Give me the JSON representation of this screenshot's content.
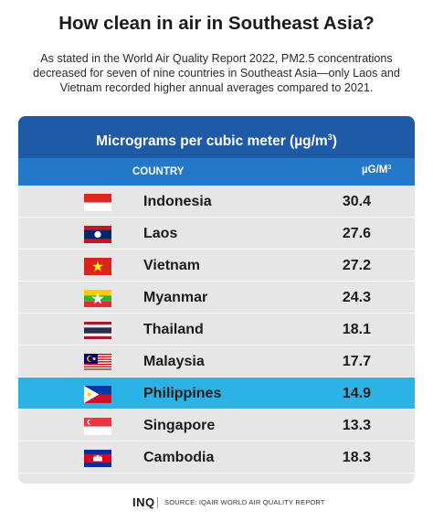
{
  "title": "How clean in air in Southeast Asia?",
  "subtitle": "As stated in the World Air Quality Report 2022, PM2.5 concentrations decreased for seven of nine countries in Southeast Asia—only Laos and Vietnam recorded higher annual averages compared to 2021.",
  "table": {
    "header": "Micrograms per cubic meter (µg/m",
    "header_sup": "3",
    "header_close": ")",
    "col_country": "COUNTRY",
    "col_value": "µG/M",
    "col_value_sup": "3"
  },
  "chart_data": {
    "type": "table",
    "columns": [
      "COUNTRY",
      "µG/M3"
    ],
    "categories": [
      "Indonesia",
      "Laos",
      "Vietnam",
      "Myanmar",
      "Thailand",
      "Malaysia",
      "Philippines",
      "Singapore",
      "Cambodia"
    ],
    "values": [
      "30.4",
      "27.6",
      "27.2",
      "24.3",
      "18.1",
      "17.7",
      "14.9",
      "13.3",
      "18.3"
    ],
    "highlighted": "Philippines",
    "flags": [
      "indonesia-flag-icon",
      "laos-flag-icon",
      "vietnam-flag-icon",
      "myanmar-flag-icon",
      "thailand-flag-icon",
      "malaysia-flag-icon",
      "philippines-flag-icon",
      "singapore-flag-icon",
      "cambodia-flag-icon"
    ]
  },
  "colors": {
    "header_bg": "#1f5aa6",
    "colhead_bg": "#2478c9",
    "row_bg": "#e6e6e6",
    "highlight_bg": "#2bb3e6"
  },
  "footer": {
    "logo": "INQ",
    "source": "SOURCE: IQAIR WORLD AIR QUALITY REPORT"
  }
}
